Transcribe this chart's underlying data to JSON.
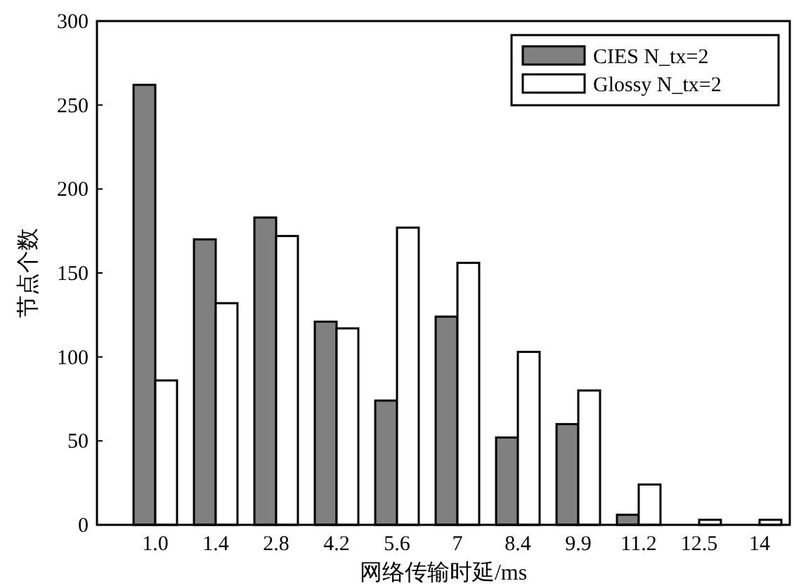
{
  "chart_data": {
    "type": "bar",
    "xlabel": "网络传输时延/ms",
    "ylabel": "节点个数",
    "categories": [
      "1.0",
      "1.4",
      "2.8",
      "4.2",
      "5.6",
      "7",
      "8.4",
      "9.9",
      "11.2",
      "12.5",
      "14"
    ],
    "series": [
      {
        "name": "CIES N_tx=2",
        "color": "#808080",
        "values": [
          262,
          170,
          183,
          121,
          74,
          124,
          52,
          60,
          6,
          0,
          0
        ]
      },
      {
        "name": "Glossy N_tx=2",
        "color": "#ffffff",
        "values": [
          86,
          132,
          172,
          117,
          177,
          156,
          103,
          80,
          24,
          3,
          3
        ]
      }
    ],
    "ylim": [
      0,
      300
    ],
    "yticks": [
      0,
      50,
      100,
      150,
      200,
      250,
      300
    ],
    "legend": "top right"
  }
}
